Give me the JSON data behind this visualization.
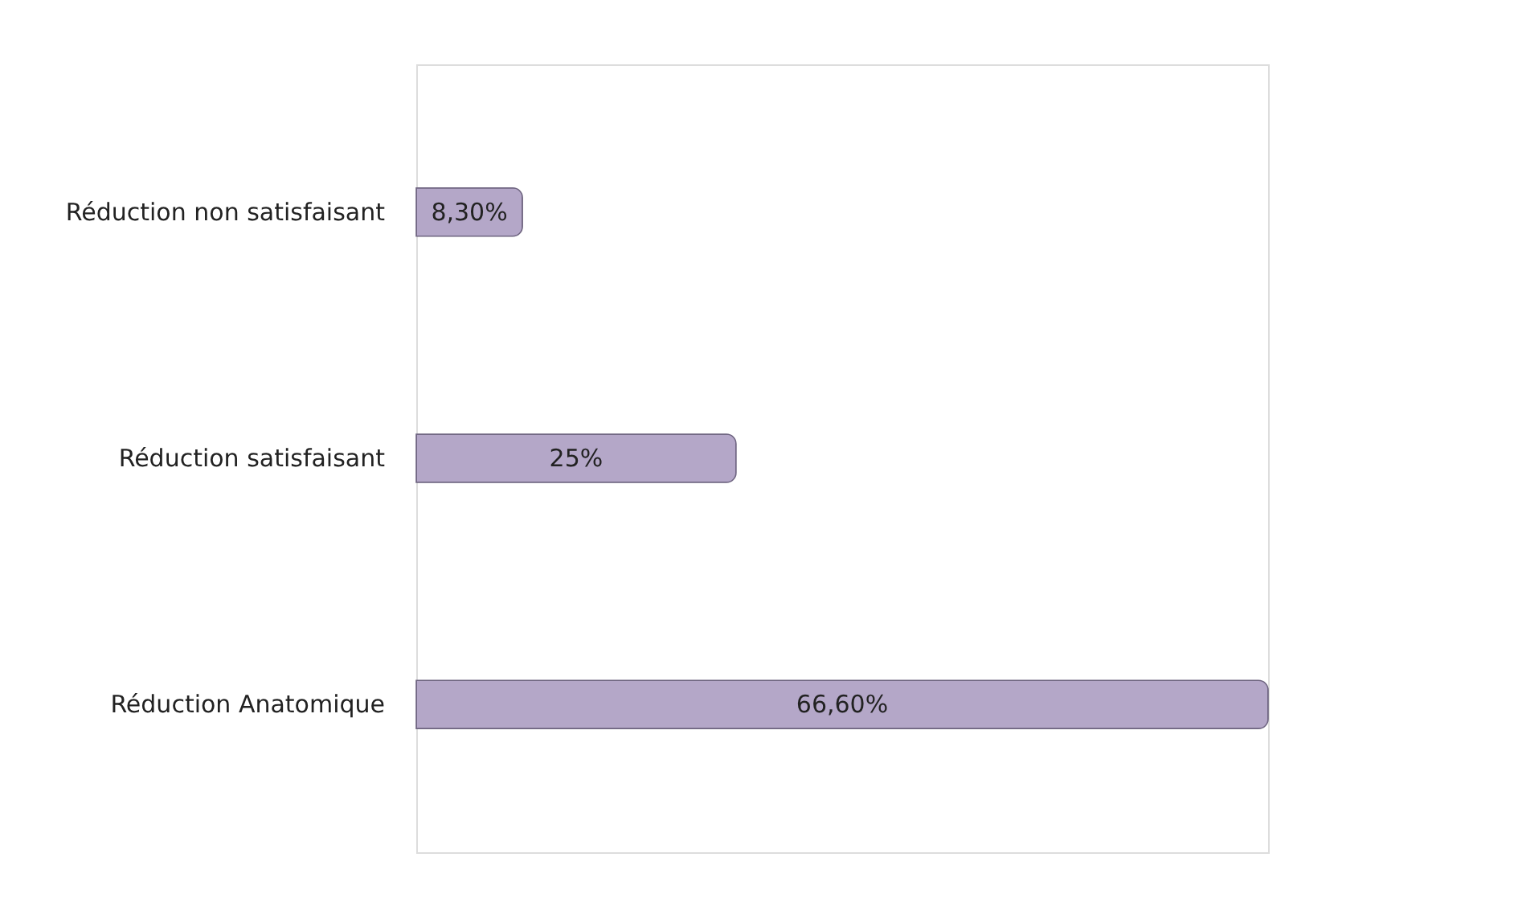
{
  "chart_data": {
    "type": "bar",
    "orientation": "horizontal",
    "categories": [
      "Réduction non satisfaisant",
      "Réduction satisfaisant",
      "Réduction Anatomique"
    ],
    "values": [
      8.3,
      25,
      66.6
    ],
    "value_labels": [
      "8,30%",
      "25%",
      "66,60%"
    ],
    "color": "#b4a7c8",
    "tick_labels": "y"
  }
}
